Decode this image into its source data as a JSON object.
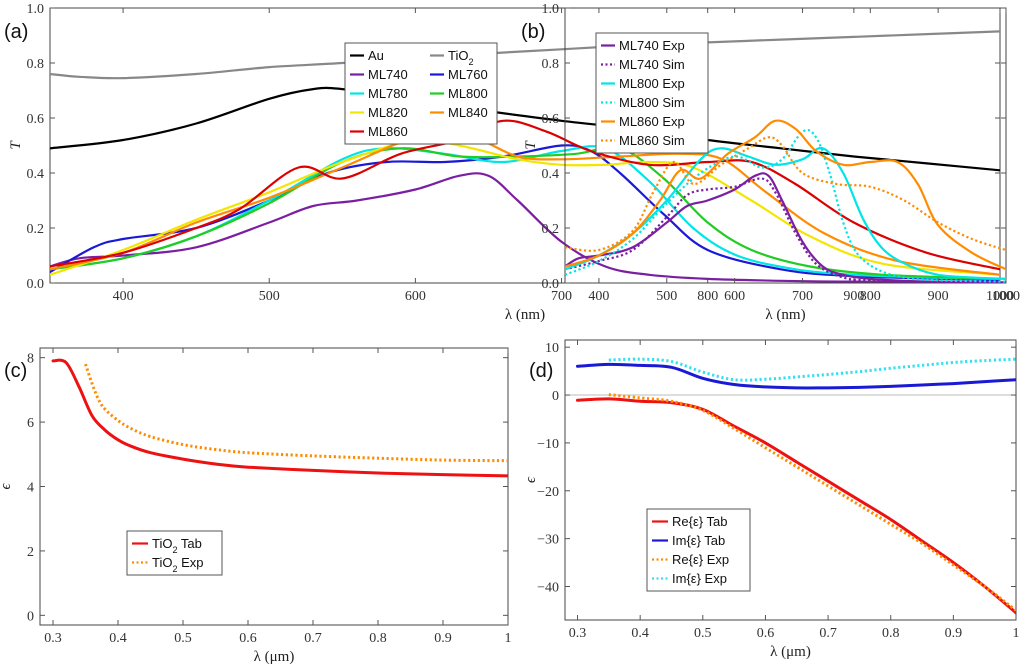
{
  "chart_data": [
    {
      "id": "a",
      "type": "line",
      "panel_label": "(a)",
      "xlabel": "λ (nm)",
      "ylabel": "T",
      "xlim": [
        350,
        1000
      ],
      "ylim": [
        0,
        1.0
      ],
      "xticks": [
        400,
        500,
        600,
        700,
        800,
        900,
        1000
      ],
      "yticks": [
        0.0,
        0.2,
        0.4,
        0.6,
        0.8,
        1.0
      ],
      "ytick_labels": [
        "0.0",
        "0.2",
        "0.4",
        "0.6",
        "0.8",
        "1.0"
      ],
      "legend_position": "top-right",
      "legend_columns": 2,
      "series": [
        {
          "name": "Au",
          "color": "#000000",
          "dash": "solid",
          "x": [
            350,
            400,
            450,
            500,
            530,
            550,
            600,
            650,
            700,
            750,
            800,
            850,
            900,
            950,
            1000
          ],
          "y": [
            0.49,
            0.52,
            0.58,
            0.67,
            0.705,
            0.705,
            0.67,
            0.625,
            0.59,
            0.56,
            0.52,
            0.49,
            0.46,
            0.435,
            0.41
          ]
        },
        {
          "name": "TiO",
          "sub": "2",
          "color": "#888888",
          "dash": "solid",
          "x": [
            350,
            370,
            400,
            450,
            500,
            550,
            600,
            650,
            700,
            750,
            800,
            850,
            900,
            950,
            1000
          ],
          "y": [
            0.76,
            0.75,
            0.745,
            0.76,
            0.785,
            0.8,
            0.82,
            0.835,
            0.85,
            0.865,
            0.875,
            0.885,
            0.895,
            0.905,
            0.915
          ]
        },
        {
          "name": "ML740",
          "color": "#7b1fa2",
          "dash": "solid",
          "x": [
            350,
            370,
            400,
            450,
            500,
            530,
            560,
            600,
            630,
            650,
            670,
            700,
            730,
            760,
            800,
            850,
            900,
            1000
          ],
          "y": [
            0.06,
            0.09,
            0.1,
            0.13,
            0.22,
            0.28,
            0.3,
            0.34,
            0.39,
            0.39,
            0.3,
            0.15,
            0.06,
            0.03,
            0.015,
            0.008,
            0.005,
            0.002
          ]
        },
        {
          "name": "ML760",
          "color": "#1a1ad6",
          "dash": "solid",
          "x": [
            350,
            380,
            400,
            450,
            500,
            540,
            580,
            620,
            660,
            700,
            720,
            740,
            770,
            800,
            850,
            900,
            1000
          ],
          "y": [
            0.04,
            0.13,
            0.16,
            0.2,
            0.3,
            0.4,
            0.44,
            0.44,
            0.46,
            0.5,
            0.48,
            0.4,
            0.25,
            0.12,
            0.05,
            0.025,
            0.01
          ]
        },
        {
          "name": "ML780",
          "color": "#00e5e5",
          "dash": "solid",
          "x": [
            350,
            400,
            450,
            500,
            550,
            580,
            620,
            660,
            700,
            730,
            760,
            790,
            820,
            860,
            900,
            950,
            1000
          ],
          "y": [
            0.05,
            0.09,
            0.17,
            0.3,
            0.45,
            0.49,
            0.47,
            0.44,
            0.48,
            0.49,
            0.37,
            0.2,
            0.1,
            0.05,
            0.03,
            0.02,
            0.015
          ]
        },
        {
          "name": "ML800",
          "color": "#22cc22",
          "dash": "solid",
          "x": [
            350,
            400,
            450,
            500,
            550,
            590,
            630,
            670,
            710,
            740,
            770,
            800,
            830,
            870,
            920,
            1000
          ],
          "y": [
            0.05,
            0.09,
            0.17,
            0.29,
            0.44,
            0.49,
            0.46,
            0.46,
            0.47,
            0.49,
            0.38,
            0.22,
            0.12,
            0.06,
            0.03,
            0.015
          ]
        },
        {
          "name": "ML820",
          "color": "#f2e600",
          "dash": "solid",
          "x": [
            350,
            400,
            450,
            500,
            550,
            600,
            630,
            670,
            700,
            730,
            760,
            790,
            830,
            870,
            920,
            1000
          ],
          "y": [
            0.03,
            0.12,
            0.23,
            0.33,
            0.44,
            0.52,
            0.5,
            0.45,
            0.43,
            0.43,
            0.44,
            0.42,
            0.3,
            0.17,
            0.07,
            0.03
          ]
        },
        {
          "name": "ML840",
          "color": "#ff8c00",
          "dash": "solid",
          "x": [
            350,
            400,
            450,
            500,
            550,
            610,
            640,
            670,
            700,
            740,
            780,
            810,
            840,
            880,
            930,
            1000
          ],
          "y": [
            0.05,
            0.11,
            0.22,
            0.31,
            0.42,
            0.55,
            0.53,
            0.46,
            0.45,
            0.46,
            0.47,
            0.45,
            0.33,
            0.18,
            0.08,
            0.03
          ]
        },
        {
          "name": "ML860",
          "color": "#dd0000",
          "dash": "solid",
          "x": [
            350,
            400,
            450,
            480,
            520,
            550,
            590,
            630,
            660,
            690,
            720,
            760,
            800,
            830,
            860,
            900,
            950,
            1000
          ],
          "y": [
            0.06,
            0.11,
            0.2,
            0.27,
            0.42,
            0.38,
            0.47,
            0.52,
            0.59,
            0.55,
            0.48,
            0.43,
            0.44,
            0.44,
            0.36,
            0.22,
            0.11,
            0.05
          ]
        }
      ]
    },
    {
      "id": "b",
      "type": "line",
      "panel_label": "(b)",
      "xlabel": "λ (nm)",
      "ylabel": "T",
      "xlim": [
        350,
        1000
      ],
      "ylim": [
        0,
        1.0
      ],
      "xticks": [
        400,
        500,
        600,
        700,
        800,
        900,
        1000
      ],
      "yticks": [
        0.0,
        0.2,
        0.4,
        0.6,
        0.8,
        1.0
      ],
      "ytick_labels": [
        "0.0",
        "0.2",
        "0.4",
        "0.6",
        "0.8",
        "1.0"
      ],
      "legend_position": "top-left",
      "legend_columns": 1,
      "series": [
        {
          "name": "ML740 Exp",
          "color": "#7b1fa2",
          "dash": "solid",
          "x": [
            350,
            370,
            400,
            450,
            500,
            530,
            560,
            600,
            630,
            650,
            670,
            700,
            730,
            760,
            800,
            850,
            900,
            1000
          ],
          "y": [
            0.06,
            0.09,
            0.1,
            0.13,
            0.22,
            0.28,
            0.3,
            0.34,
            0.39,
            0.39,
            0.3,
            0.15,
            0.06,
            0.03,
            0.015,
            0.008,
            0.005,
            0.002
          ]
        },
        {
          "name": "ML740 Sim",
          "color": "#7b1fa2",
          "dash": "dotted",
          "x": [
            350,
            400,
            450,
            500,
            530,
            560,
            600,
            640,
            660,
            690,
            720,
            760,
            800,
            900,
            1000
          ],
          "y": [
            0.05,
            0.08,
            0.12,
            0.24,
            0.32,
            0.34,
            0.35,
            0.38,
            0.33,
            0.18,
            0.07,
            0.02,
            0.01,
            0.003,
            0.001
          ]
        },
        {
          "name": "ML800 Exp",
          "color": "#00e5e5",
          "dash": "solid",
          "x": [
            350,
            400,
            450,
            500,
            550,
            580,
            620,
            660,
            700,
            730,
            760,
            790,
            820,
            860,
            900,
            950,
            1000
          ],
          "y": [
            0.05,
            0.1,
            0.18,
            0.3,
            0.45,
            0.49,
            0.46,
            0.43,
            0.45,
            0.49,
            0.4,
            0.23,
            0.12,
            0.06,
            0.03,
            0.02,
            0.015
          ]
        },
        {
          "name": "ML800 Sim",
          "color": "#00e5e5",
          "dash": "dotted",
          "x": [
            350,
            400,
            450,
            500,
            550,
            600,
            640,
            670,
            700,
            720,
            740,
            760,
            780,
            810,
            850,
            900,
            1000
          ],
          "y": [
            0.03,
            0.08,
            0.16,
            0.29,
            0.4,
            0.46,
            0.42,
            0.45,
            0.55,
            0.53,
            0.4,
            0.22,
            0.11,
            0.05,
            0.02,
            0.01,
            0.005
          ]
        },
        {
          "name": "ML860 Exp",
          "color": "#ff8c00",
          "dash": "solid",
          "x": [
            350,
            400,
            450,
            490,
            520,
            550,
            590,
            630,
            660,
            690,
            720,
            760,
            800,
            840,
            870,
            900,
            950,
            1000
          ],
          "y": [
            0.06,
            0.1,
            0.18,
            0.3,
            0.41,
            0.38,
            0.47,
            0.53,
            0.59,
            0.56,
            0.48,
            0.43,
            0.44,
            0.44,
            0.36,
            0.21,
            0.11,
            0.05
          ]
        },
        {
          "name": "ML860 Sim",
          "color": "#ff8c00",
          "dash": "dotted",
          "x": [
            350,
            400,
            450,
            480,
            510,
            540,
            580,
            620,
            650,
            670,
            700,
            750,
            800,
            850,
            900,
            950,
            1000
          ],
          "y": [
            0.13,
            0.12,
            0.19,
            0.33,
            0.44,
            0.36,
            0.43,
            0.49,
            0.53,
            0.5,
            0.4,
            0.36,
            0.35,
            0.3,
            0.22,
            0.16,
            0.12
          ]
        }
      ]
    },
    {
      "id": "c",
      "type": "line",
      "panel_label": "(c)",
      "xlabel": "λ (μm)",
      "ylabel": "ϵ",
      "xlim": [
        0.28,
        1.0
      ],
      "ylim": [
        -0.3,
        8.3
      ],
      "xticks": [
        0.3,
        0.4,
        0.5,
        0.6,
        0.7,
        0.8,
        0.9,
        1.0
      ],
      "yticks": [
        0,
        2,
        4,
        6,
        8
      ],
      "ytick_labels": [
        "0",
        "2",
        "4",
        "6",
        "8"
      ],
      "legend_position": "center-left",
      "legend_columns": 1,
      "series": [
        {
          "name": "TiO",
          "sub": "2",
          "suffix": " Tab",
          "color": "#ee1111",
          "dash": "solid",
          "x": [
            0.3,
            0.32,
            0.34,
            0.36,
            0.38,
            0.4,
            0.42,
            0.45,
            0.5,
            0.55,
            0.6,
            0.7,
            0.8,
            0.9,
            1.0
          ],
          "y": [
            7.9,
            7.85,
            7.1,
            6.2,
            5.75,
            5.45,
            5.25,
            5.05,
            4.85,
            4.7,
            4.6,
            4.5,
            4.42,
            4.37,
            4.33
          ]
        },
        {
          "name": "TiO",
          "sub": "2",
          "suffix": " Exp",
          "color": "#ff8c00",
          "dash": "dotted",
          "x": [
            0.35,
            0.36,
            0.37,
            0.38,
            0.4,
            0.42,
            0.45,
            0.5,
            0.55,
            0.6,
            0.7,
            0.8,
            0.9,
            1.0
          ],
          "y": [
            7.8,
            7.2,
            6.7,
            6.4,
            6.05,
            5.8,
            5.55,
            5.3,
            5.15,
            5.05,
            4.95,
            4.88,
            4.82,
            4.8
          ]
        }
      ]
    },
    {
      "id": "d",
      "type": "line",
      "panel_label": "(d)",
      "xlabel": "λ (μm)",
      "ylabel": "ϵ",
      "xlim": [
        0.28,
        1.0
      ],
      "ylim": [
        -47,
        11.5
      ],
      "xticks": [
        0.3,
        0.4,
        0.5,
        0.6,
        0.7,
        0.8,
        0.9,
        1.0
      ],
      "yticks": [
        10,
        0,
        -10,
        -20,
        -30,
        -40
      ],
      "ytick_labels": [
        "10",
        "0",
        "−10",
        "−20",
        "−30",
        "−40"
      ],
      "legend_position": "bottom-left",
      "legend_columns": 1,
      "series": [
        {
          "name": "Re{ε} Tab",
          "color": "#ee1111",
          "dash": "solid",
          "x": [
            0.3,
            0.35,
            0.4,
            0.45,
            0.5,
            0.55,
            0.6,
            0.65,
            0.7,
            0.75,
            0.8,
            0.85,
            0.9,
            0.95,
            1.0
          ],
          "y": [
            -1.1,
            -0.8,
            -1.3,
            -1.6,
            -3.0,
            -6.5,
            -10.0,
            -14.0,
            -18.0,
            -22.0,
            -26.0,
            -30.5,
            -35.0,
            -40.0,
            -45.5
          ]
        },
        {
          "name": "Im{ε} Tab",
          "color": "#1a1ad6",
          "dash": "solid",
          "x": [
            0.3,
            0.35,
            0.4,
            0.45,
            0.5,
            0.55,
            0.6,
            0.65,
            0.7,
            0.75,
            0.8,
            0.85,
            0.9,
            0.95,
            1.0
          ],
          "y": [
            6.0,
            6.4,
            6.2,
            5.8,
            3.5,
            2.2,
            1.7,
            1.5,
            1.5,
            1.6,
            1.8,
            2.1,
            2.4,
            2.8,
            3.2
          ]
        },
        {
          "name": "Re{ε} Exp",
          "color": "#ff8c00",
          "dash": "dotted",
          "x": [
            0.35,
            0.4,
            0.45,
            0.5,
            0.55,
            0.6,
            0.65,
            0.7,
            0.75,
            0.8,
            0.85,
            0.9,
            0.95,
            1.0
          ],
          "y": [
            0.1,
            -0.6,
            -1.3,
            -3.2,
            -7.0,
            -11.0,
            -15.0,
            -19.0,
            -23.0,
            -27.0,
            -31.0,
            -35.5,
            -40.0,
            -45.0
          ]
        },
        {
          "name": "Im{ε} Exp",
          "color": "#33e0ee",
          "dash": "dotted",
          "x": [
            0.35,
            0.4,
            0.45,
            0.5,
            0.55,
            0.6,
            0.65,
            0.7,
            0.75,
            0.8,
            0.85,
            0.9,
            0.95,
            1.0
          ],
          "y": [
            7.3,
            7.5,
            7.0,
            4.8,
            3.2,
            3.3,
            3.8,
            4.3,
            4.9,
            5.6,
            6.2,
            6.8,
            7.2,
            7.5
          ]
        }
      ]
    }
  ]
}
